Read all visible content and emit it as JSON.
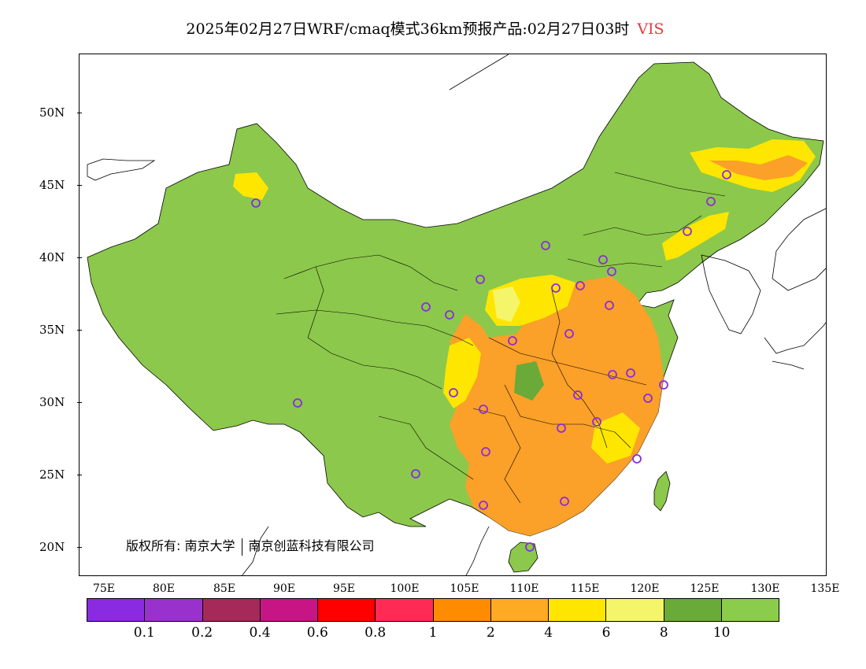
{
  "title": {
    "main": "2025年02月27日WRF/cmaq模式36km预报产品:02月27日03时",
    "variable": "VIS"
  },
  "axes": {
    "lat_labels": [
      "50N",
      "45N",
      "40N",
      "35N",
      "30N",
      "25N",
      "20N"
    ],
    "lon_labels": [
      "75E",
      "80E",
      "85E",
      "90E",
      "95E",
      "100E",
      "105E",
      "110E",
      "115E",
      "120E",
      "125E",
      "130E",
      "135E"
    ]
  },
  "colorbar": {
    "colors": [
      "#8a2be2",
      "#9932cc",
      "#a52a5a",
      "#c71585",
      "#ff0000",
      "#ff2b55",
      "#ff8c00",
      "#ffaa22",
      "#ffe600",
      "#f5f56a",
      "#6aaa38",
      "#8ccc4c"
    ],
    "labels": [
      "0.1",
      "0.2",
      "0.4",
      "0.6",
      "0.8",
      "1",
      "2",
      "4",
      "6",
      "8",
      "10"
    ]
  },
  "copyright": {
    "prefix": "版权所有:",
    "org1": "南京大学",
    "org2": "南京创蓝科技有限公司"
  },
  "colors": {
    "green_land": "#8cc84b",
    "dark_green": "#6aaa38",
    "orange": "#fba028",
    "light_orange": "#ffb830",
    "yellow": "#ffe600",
    "pale_yellow": "#f5f56a",
    "marker": "#8a2be2"
  }
}
